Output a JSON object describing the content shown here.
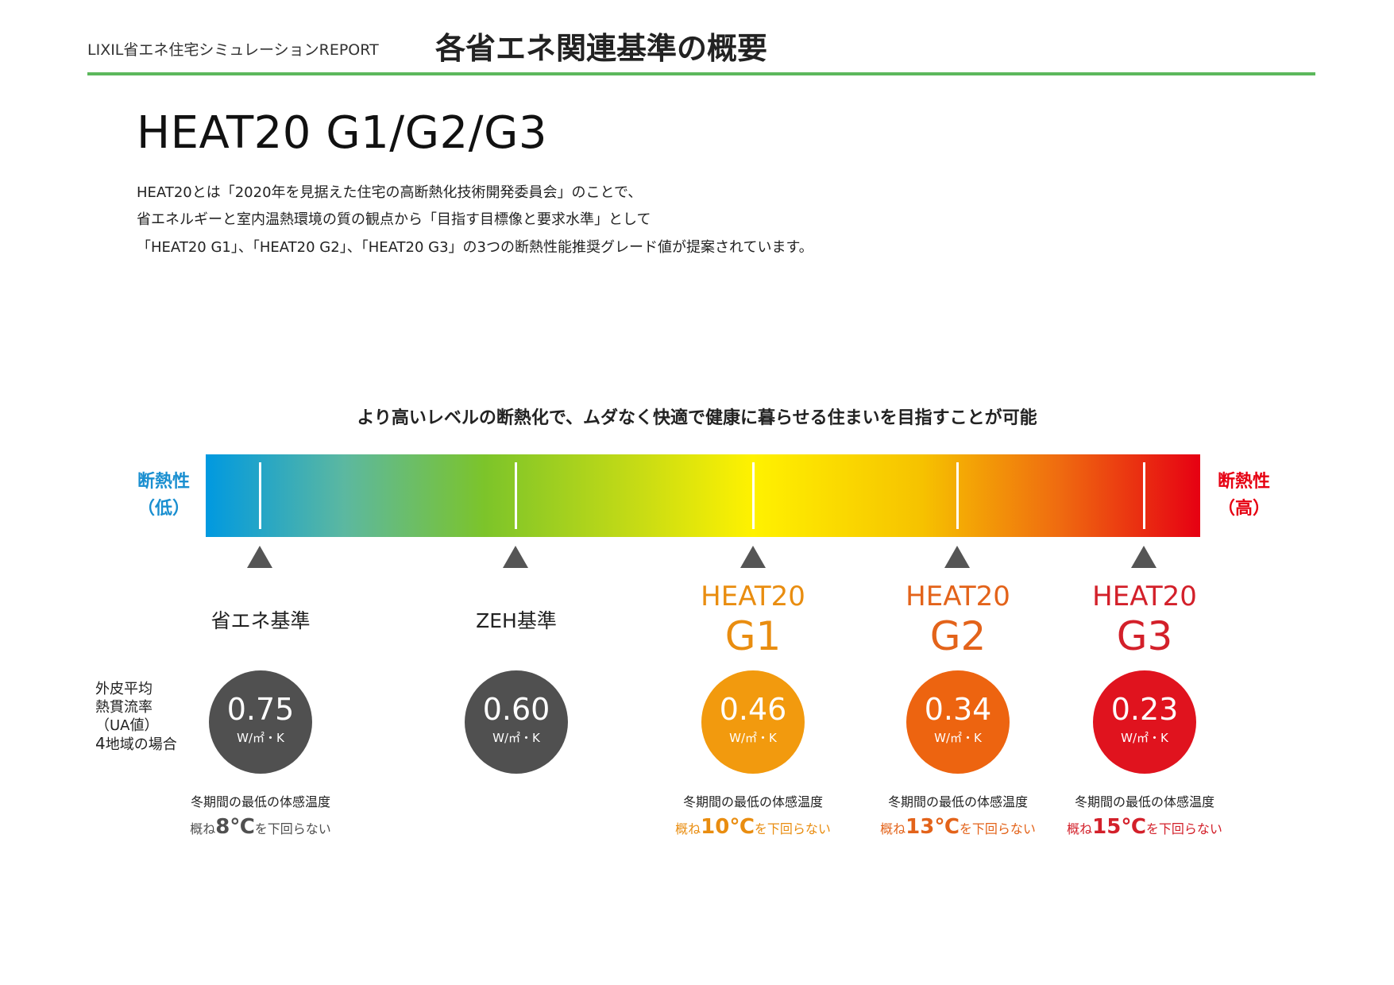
{
  "header": {
    "report_label": "LIXIL省エネ住宅シミュレーションREPORT",
    "page_title": "各省エネ関連基準の概要",
    "rule_color": "#5cb85c"
  },
  "main": {
    "title": "HEAT20 G1/G2/G3",
    "description": [
      "HEAT20とは「2020年を見据えた住宅の高断熱化技術開発委員会」のことで、",
      "省エネルギーと室内温熱環境の質の観点から「目指す目標像と要求水準」として",
      "「HEAT20 G1」、「HEAT20 G2」、「HEAT20 G3」の3つの断熱性能推奨グレード値が提案されています。"
    ]
  },
  "scale": {
    "headline": "より高いレベルの断熱化で、ムダなく快適で健康に暮らせる住まいを目指すことが可能",
    "low_label_1": "断熱性",
    "low_label_2": "（低）",
    "low_color": "#1a8fd0",
    "high_label_1": "断熱性",
    "high_label_2": "（高）",
    "high_color": "#e60012"
  },
  "ua_label": {
    "line1": "外皮平均",
    "line2": "熱貫流率",
    "line3": "（UA値）",
    "line4_num": "4",
    "line4_text": "地域の場合"
  },
  "temp_common": {
    "caption": "冬期間の最低の体感温度",
    "prefix": "概ね",
    "suffix": "を下回らない"
  },
  "standards": [
    {
      "name": "省エネ基準",
      "value": "0.75",
      "unit": "W/㎡・K",
      "circle_color": "#505050",
      "temp": "8℃",
      "temp_color": "#505050"
    },
    {
      "name": "ZEH基準",
      "value": "0.60",
      "unit": "W/㎡・K",
      "circle_color": "#505050"
    },
    {
      "name_l1": "HEAT20",
      "name_l2": "G1",
      "value": "0.46",
      "unit": "W/㎡・K",
      "circle_color": "#f29a0e",
      "name_color": "#e98d10",
      "temp": "10℃",
      "temp_color": "#e98d10"
    },
    {
      "name_l1": "HEAT20",
      "name_l2": "G2",
      "value": "0.34",
      "unit": "W/㎡・K",
      "circle_color": "#ed6410",
      "name_color": "#e3631a",
      "temp": "13℃",
      "temp_color": "#e3631a"
    },
    {
      "name_l1": "HEAT20",
      "name_l2": "G3",
      "value": "0.23",
      "unit": "W/㎡・K",
      "circle_color": "#e0131e",
      "name_color": "#d3202a",
      "temp": "15℃",
      "temp_color": "#d3202a"
    }
  ]
}
